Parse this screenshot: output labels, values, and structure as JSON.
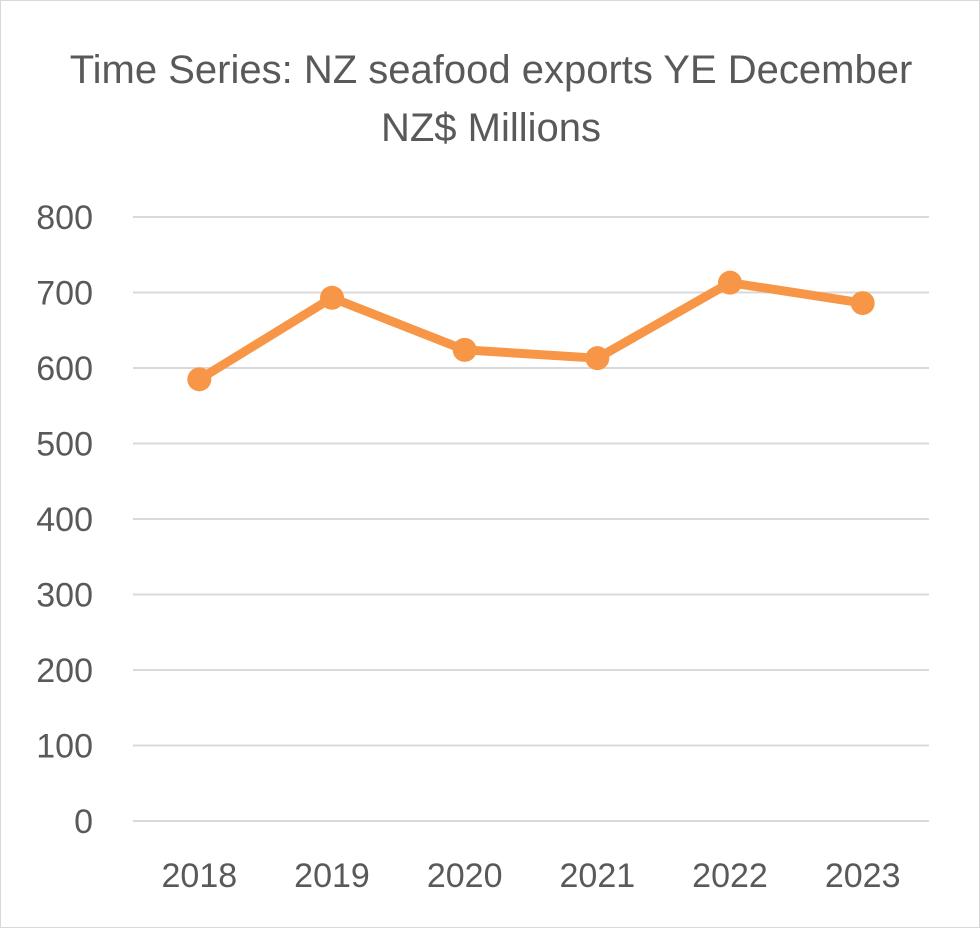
{
  "chart_data": {
    "type": "line",
    "title": "Time Series: NZ seafood exports YE December NZ$ Millions",
    "xlabel": "",
    "ylabel": "",
    "categories": [
      "2018",
      "2019",
      "2020",
      "2021",
      "2022",
      "2023"
    ],
    "series": [
      {
        "values": [
          585,
          693,
          624,
          613,
          713,
          686
        ],
        "color": "#f79646"
      }
    ],
    "ylim": [
      0,
      800
    ],
    "yticks": [
      0,
      100,
      200,
      300,
      400,
      500,
      600,
      700,
      800
    ],
    "grid": true,
    "legend": "none",
    "gridColor": "#d9d9d9",
    "textColor": "#595959"
  }
}
